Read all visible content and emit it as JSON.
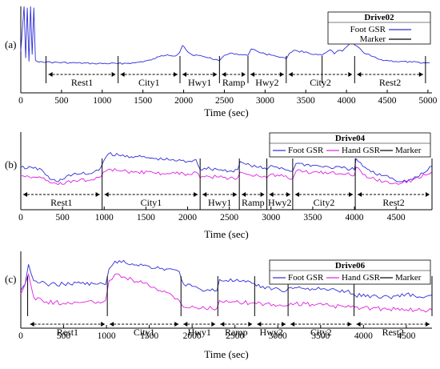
{
  "figure": {
    "colors": {
      "foot": "#2d2dd8",
      "hand": "#e020e0",
      "marker": "#000000"
    },
    "panels": [
      "(a)",
      "(b)",
      "(c)"
    ]
  },
  "chart_data": [
    {
      "type": "line",
      "panel_label": "(a)",
      "xlabel": "Time (sec)",
      "ylabel": "",
      "xlim": [
        0,
        5050
      ],
      "ylim": [
        0,
        1
      ],
      "xticks": [
        0,
        500,
        1000,
        1500,
        2000,
        2500,
        3000,
        3500,
        4000,
        4500,
        5000
      ],
      "xticklabels": [
        "0",
        "500",
        "1000",
        "1500",
        "2000",
        "2500",
        "3000",
        "3500",
        "4000",
        "4500",
        "5000"
      ],
      "legend": {
        "title": "Drive02",
        "entries": [
          "Foot GSR",
          "Marker"
        ],
        "position": "top-right"
      },
      "markers": [
        310,
        1195,
        1955,
        2440,
        2790,
        3260,
        3700,
        4100,
        4970
      ],
      "segments": [
        {
          "label": "Rest1",
          "start": 310,
          "end": 1195
        },
        {
          "label": "City1",
          "start": 1195,
          "end": 1955
        },
        {
          "label": "Hwy1",
          "start": 1955,
          "end": 2440
        },
        {
          "label": "Ramp",
          "start": 2440,
          "end": 2790
        },
        {
          "label": "Hwy2",
          "start": 2790,
          "end": 3260
        },
        {
          "label": "City2",
          "start": 3260,
          "end": 4100
        },
        {
          "label": "Rest2",
          "start": 4100,
          "end": 4970
        }
      ],
      "series": [
        {
          "name": "Foot GSR",
          "color": "#2d2dd8",
          "x": [
            0,
            40,
            60,
            80,
            100,
            120,
            140,
            160,
            180,
            200,
            250,
            310,
            600,
            900,
            1195,
            1400,
            1600,
            1700,
            1800,
            1900,
            1950,
            1985,
            2000,
            2050,
            2100,
            2250,
            2400,
            2440,
            2500,
            2600,
            2700,
            2790,
            2830,
            2900,
            3000,
            3100,
            3200,
            3260,
            3300,
            3350,
            3400,
            3500,
            3600,
            3700,
            3750,
            3800,
            3850,
            3900,
            3950,
            4000,
            4050,
            4100,
            4130,
            4200,
            4300,
            4400,
            4600,
            4800,
            4970,
            5020
          ],
          "y": [
            0.35,
            1.0,
            0.25,
            0.98,
            0.2,
            1.0,
            0.3,
            0.98,
            0.22,
            0.2,
            0.2,
            0.19,
            0.18,
            0.17,
            0.17,
            0.18,
            0.22,
            0.27,
            0.3,
            0.28,
            0.33,
            0.43,
            0.42,
            0.34,
            0.3,
            0.27,
            0.23,
            0.21,
            0.29,
            0.32,
            0.3,
            0.29,
            0.38,
            0.35,
            0.31,
            0.29,
            0.26,
            0.24,
            0.32,
            0.36,
            0.35,
            0.34,
            0.3,
            0.29,
            0.33,
            0.37,
            0.31,
            0.36,
            0.35,
            0.41,
            0.48,
            0.44,
            0.42,
            0.34,
            0.28,
            0.23,
            0.2,
            0.19,
            0.18,
            0.18
          ]
        }
      ]
    },
    {
      "type": "line",
      "panel_label": "(b)",
      "xlabel": "Time (sec)",
      "ylabel": "",
      "xlim": [
        0,
        4930
      ],
      "ylim": [
        0,
        1
      ],
      "xticks": [
        0,
        500,
        1000,
        1500,
        2000,
        2500,
        3000,
        3500,
        4000,
        4500
      ],
      "xticklabels": [
        "0",
        "500",
        "1000",
        "1500",
        "2000",
        "2500",
        "3000",
        "3500",
        "4000",
        "4500"
      ],
      "legend": {
        "title": "Drive04",
        "entries": [
          "Foot GSR",
          "Hand GSR",
          "Marker"
        ],
        "position": "top-right"
      },
      "markers": [
        975,
        2150,
        2620,
        2950,
        3260,
        4010,
        4930
      ],
      "segments": [
        {
          "label": "Rest1",
          "start": 0,
          "end": 975
        },
        {
          "label": "City1",
          "start": 975,
          "end": 2150
        },
        {
          "label": "Hwy1",
          "start": 2150,
          "end": 2620
        },
        {
          "label": "Ramp",
          "start": 2620,
          "end": 2950
        },
        {
          "label": "Hwy2",
          "start": 2950,
          "end": 3260
        },
        {
          "label": "City2",
          "start": 3260,
          "end": 4010
        },
        {
          "label": "Rest2",
          "start": 4010,
          "end": 4930
        }
      ],
      "series": [
        {
          "name": "Foot GSR",
          "color": "#2d2dd8",
          "x": [
            0,
            150,
            250,
            350,
            450,
            550,
            700,
            850,
            960,
            990,
            1050,
            1200,
            1400,
            1600,
            1800,
            2000,
            2100,
            2150,
            2200,
            2350,
            2500,
            2600,
            2630,
            2700,
            2850,
            2950,
            3000,
            3150,
            3260,
            3300,
            3500,
            3700,
            3900,
            4000,
            4020,
            4100,
            4250,
            4400,
            4550,
            4700,
            4850,
            4930
          ],
          "y": [
            0.6,
            0.58,
            0.55,
            0.35,
            0.3,
            0.42,
            0.46,
            0.47,
            0.6,
            0.72,
            0.88,
            0.84,
            0.82,
            0.78,
            0.75,
            0.72,
            0.76,
            0.55,
            0.58,
            0.56,
            0.52,
            0.55,
            0.72,
            0.66,
            0.6,
            0.55,
            0.64,
            0.57,
            0.52,
            0.68,
            0.64,
            0.6,
            0.58,
            0.55,
            0.78,
            0.62,
            0.46,
            0.42,
            0.3,
            0.35,
            0.5,
            0.62
          ]
        },
        {
          "name": "Hand GSR",
          "color": "#e020e0",
          "x": [
            0,
            150,
            250,
            350,
            450,
            550,
            700,
            850,
            960,
            990,
            1050,
            1200,
            1400,
            1600,
            1800,
            2000,
            2100,
            2150,
            2200,
            2350,
            2500,
            2600,
            2630,
            2700,
            2850,
            2950,
            3000,
            3150,
            3260,
            3300,
            3500,
            3700,
            3900,
            4000,
            4020,
            4100,
            4250,
            4400,
            4550,
            4700,
            4850,
            4930
          ],
          "y": [
            0.42,
            0.4,
            0.38,
            0.28,
            0.24,
            0.3,
            0.33,
            0.34,
            0.4,
            0.5,
            0.56,
            0.52,
            0.5,
            0.48,
            0.47,
            0.46,
            0.5,
            0.38,
            0.4,
            0.4,
            0.37,
            0.38,
            0.5,
            0.46,
            0.42,
            0.38,
            0.46,
            0.41,
            0.36,
            0.52,
            0.5,
            0.48,
            0.46,
            0.43,
            0.6,
            0.45,
            0.34,
            0.3,
            0.26,
            0.34,
            0.44,
            0.5
          ]
        }
      ]
    },
    {
      "type": "line",
      "panel_label": "(c)",
      "xlabel": "Time (sec)",
      "ylabel": "",
      "xlim": [
        0,
        4800
      ],
      "ylim": [
        0,
        1
      ],
      "xticks": [
        0,
        500,
        1000,
        1500,
        2000,
        2500,
        3000,
        3500,
        4000,
        4500
      ],
      "xticklabels": [
        "0",
        "500",
        "1000",
        "1500",
        "2000",
        "2500",
        "3000",
        "3500",
        "4000",
        "4500"
      ],
      "legend": {
        "title": "Drive06",
        "entries": [
          "Foot GSR",
          "Hand GSR",
          "Marker"
        ],
        "position": "top-right"
      },
      "markers": [
        80,
        1010,
        1870,
        2300,
        2730,
        3120,
        3890,
        4800
      ],
      "segments": [
        {
          "label": "Rest1",
          "start": 80,
          "end": 1010
        },
        {
          "label": "City1",
          "start": 1010,
          "end": 1870
        },
        {
          "label": "Hwy1",
          "start": 1870,
          "end": 2300
        },
        {
          "label": "Ramp",
          "start": 2300,
          "end": 2730
        },
        {
          "label": "Hwy2",
          "start": 2730,
          "end": 3120
        },
        {
          "label": "City2",
          "start": 3120,
          "end": 3890
        },
        {
          "label": "Rest2",
          "start": 3890,
          "end": 4800
        }
      ],
      "series": [
        {
          "name": "Foot GSR",
          "color": "#2d2dd8",
          "x": [
            0,
            50,
            90,
            150,
            300,
            500,
            700,
            900,
            990,
            1030,
            1100,
            1300,
            1500,
            1700,
            1850,
            1900,
            2100,
            2290,
            2320,
            2500,
            2700,
            2750,
            2950,
            3100,
            3150,
            3400,
            3600,
            3800,
            3900,
            4100,
            4300,
            4500,
            4700,
            4800
          ],
          "y": [
            0.45,
            0.55,
            0.85,
            0.6,
            0.55,
            0.55,
            0.56,
            0.55,
            0.54,
            0.78,
            0.9,
            0.86,
            0.82,
            0.78,
            0.74,
            0.55,
            0.47,
            0.45,
            0.62,
            0.6,
            0.56,
            0.52,
            0.48,
            0.45,
            0.5,
            0.48,
            0.46,
            0.44,
            0.38,
            0.37,
            0.35,
            0.4,
            0.34,
            0.38
          ]
        },
        {
          "name": "Hand GSR",
          "color": "#e020e0",
          "x": [
            0,
            50,
            90,
            150,
            300,
            500,
            700,
            900,
            990,
            1030,
            1100,
            1300,
            1500,
            1700,
            1850,
            1900,
            2100,
            2290,
            2320,
            2500,
            2700,
            2750,
            2950,
            3100,
            3150,
            3400,
            3600,
            3800,
            3900,
            4100,
            4300,
            4500,
            4700,
            4800
          ],
          "y": [
            0.4,
            0.55,
            0.7,
            0.35,
            0.28,
            0.26,
            0.27,
            0.28,
            0.3,
            0.6,
            0.7,
            0.62,
            0.52,
            0.42,
            0.3,
            0.2,
            0.18,
            0.18,
            0.3,
            0.28,
            0.26,
            0.25,
            0.24,
            0.22,
            0.26,
            0.24,
            0.22,
            0.2,
            0.2,
            0.18,
            0.17,
            0.16,
            0.15,
            0.16
          ]
        }
      ]
    }
  ]
}
